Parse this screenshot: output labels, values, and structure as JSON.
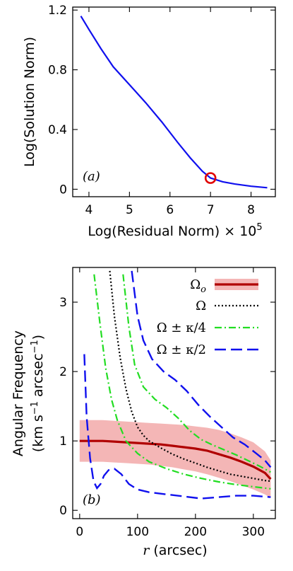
{
  "chart_data": [
    {
      "type": "line",
      "panel_label": "(a)",
      "xlabel": "Log(Residual Norm) × 10",
      "xlabel_sup": "5",
      "ylabel": "Log(Solution Norm)",
      "xlim": [
        3.6,
        8.6
      ],
      "ylim": [
        -0.05,
        1.22
      ],
      "xticks": [
        4,
        5,
        6,
        7,
        8
      ],
      "xtick_labels": [
        "4",
        "5",
        "6",
        "7",
        "8"
      ],
      "yticks": [
        0,
        0.4,
        0.8,
        1.2
      ],
      "ytick_labels": [
        "0",
        "0.4",
        "0.8",
        "1.2"
      ],
      "series": [
        {
          "color": "#1010ee",
          "x": [
            3.8,
            4.0,
            4.3,
            4.6,
            5.0,
            5.4,
            5.8,
            6.2,
            6.5,
            6.8,
            7.0,
            7.3,
            7.6,
            8.0,
            8.4
          ],
          "y": [
            1.16,
            1.07,
            0.94,
            0.82,
            0.7,
            0.58,
            0.45,
            0.31,
            0.21,
            0.12,
            0.075,
            0.05,
            0.035,
            0.02,
            0.01
          ]
        }
      ],
      "marker": {
        "x": 7.0,
        "y": 0.075,
        "color": "#e00000"
      }
    },
    {
      "type": "line",
      "panel_label": "(b)",
      "xlabel_italic": "r",
      "xlabel": "(arcsec)",
      "ylabel": "Angular Frequency",
      "ylabel2_pre": "(km s",
      "ylabel2_sup1": "−1",
      "ylabel2_mid": " arcsec",
      "ylabel2_sup2": "−1",
      "ylabel2_post": ")",
      "xlim": [
        -12,
        338
      ],
      "ylim": [
        -0.12,
        3.5
      ],
      "xticks": [
        0,
        100,
        200,
        300
      ],
      "xtick_labels": [
        "0",
        "100",
        "200",
        "300"
      ],
      "yticks": [
        0,
        1,
        2,
        3
      ],
      "ytick_labels": [
        "0",
        "1",
        "2",
        "3"
      ],
      "legend_position": "top-right",
      "legend": [
        {
          "label": "Ω",
          "sub": "o",
          "style": "band"
        },
        {
          "label": "Ω",
          "sub": "",
          "style": "dotted"
        },
        {
          "label": "Ω ± κ/4",
          "sub": "",
          "style": "dashdot"
        },
        {
          "label": "Ω ± κ/2",
          "sub": "",
          "style": "longdash"
        }
      ],
      "band": {
        "color": "#f4b6b6",
        "x": [
          0,
          20,
          40,
          60,
          80,
          100,
          120,
          140,
          160,
          180,
          200,
          220,
          240,
          260,
          280,
          300,
          320,
          330
        ],
        "upper": [
          1.3,
          1.3,
          1.3,
          1.29,
          1.28,
          1.27,
          1.26,
          1.25,
          1.24,
          1.23,
          1.21,
          1.19,
          1.16,
          1.11,
          1.05,
          0.98,
          0.85,
          0.72
        ],
        "lower": [
          0.7,
          0.7,
          0.7,
          0.69,
          0.68,
          0.67,
          0.66,
          0.64,
          0.62,
          0.59,
          0.56,
          0.52,
          0.47,
          0.42,
          0.36,
          0.3,
          0.23,
          0.18
        ]
      },
      "series": [
        {
          "name": "Ωo",
          "style": "solid",
          "color": "#b00000",
          "x": [
            0,
            20,
            40,
            60,
            80,
            100,
            120,
            140,
            160,
            180,
            200,
            220,
            240,
            260,
            280,
            300,
            320,
            330
          ],
          "y": [
            1.0,
            1.0,
            1.0,
            0.99,
            0.98,
            0.97,
            0.96,
            0.95,
            0.93,
            0.91,
            0.89,
            0.86,
            0.81,
            0.76,
            0.7,
            0.63,
            0.54,
            0.45
          ]
        },
        {
          "name": "Ω",
          "style": "dotted",
          "color": "#000000",
          "x": [
            52,
            60,
            70,
            80,
            90,
            100,
            110,
            120,
            140,
            160,
            180,
            200,
            220,
            240,
            260,
            280,
            300,
            320,
            330
          ],
          "y": [
            3.45,
            2.8,
            2.2,
            1.75,
            1.42,
            1.2,
            1.08,
            1.0,
            0.9,
            0.81,
            0.74,
            0.68,
            0.62,
            0.57,
            0.52,
            0.49,
            0.46,
            0.43,
            0.42
          ]
        },
        {
          "name": "Ω+κ/4",
          "style": "dashdot",
          "color": "#22dd22",
          "x": [
            75,
            85,
            95,
            110,
            130,
            150,
            170,
            190,
            210,
            230,
            250,
            270,
            290,
            310,
            330
          ],
          "y": [
            3.4,
            2.65,
            2.1,
            1.78,
            1.6,
            1.48,
            1.33,
            1.15,
            1.02,
            0.94,
            0.87,
            0.8,
            0.72,
            0.64,
            0.55
          ]
        },
        {
          "name": "Ω−κ/4",
          "style": "dashdot",
          "color": "#22dd22",
          "x": [
            25,
            35,
            45,
            55,
            65,
            80,
            100,
            120,
            150,
            180,
            210,
            240,
            270,
            300,
            330
          ],
          "y": [
            3.4,
            2.7,
            2.05,
            1.6,
            1.3,
            1.0,
            0.82,
            0.7,
            0.6,
            0.52,
            0.46,
            0.41,
            0.37,
            0.34,
            0.31
          ]
        },
        {
          "name": "Ω+κ/2",
          "style": "longdash",
          "color": "#1010ee",
          "x": [
            90,
            100,
            110,
            125,
            145,
            165,
            185,
            205,
            225,
            245,
            265,
            285,
            305,
            320,
            330
          ],
          "y": [
            3.45,
            2.8,
            2.45,
            2.18,
            2.0,
            1.88,
            1.72,
            1.52,
            1.35,
            1.2,
            1.05,
            0.95,
            0.82,
            0.72,
            0.62
          ]
        },
        {
          "name": "Ω−κ/2",
          "style": "longdash",
          "color": "#1010ee",
          "x": [
            8,
            12,
            18,
            24,
            30,
            36,
            42,
            50,
            60,
            72,
            85,
            100,
            120,
            150,
            180,
            210,
            240,
            270,
            300,
            330
          ],
          "y": [
            2.25,
            1.35,
            0.75,
            0.42,
            0.32,
            0.38,
            0.5,
            0.58,
            0.6,
            0.52,
            0.38,
            0.3,
            0.26,
            0.23,
            0.2,
            0.17,
            0.19,
            0.21,
            0.21,
            0.19
          ]
        }
      ]
    }
  ]
}
